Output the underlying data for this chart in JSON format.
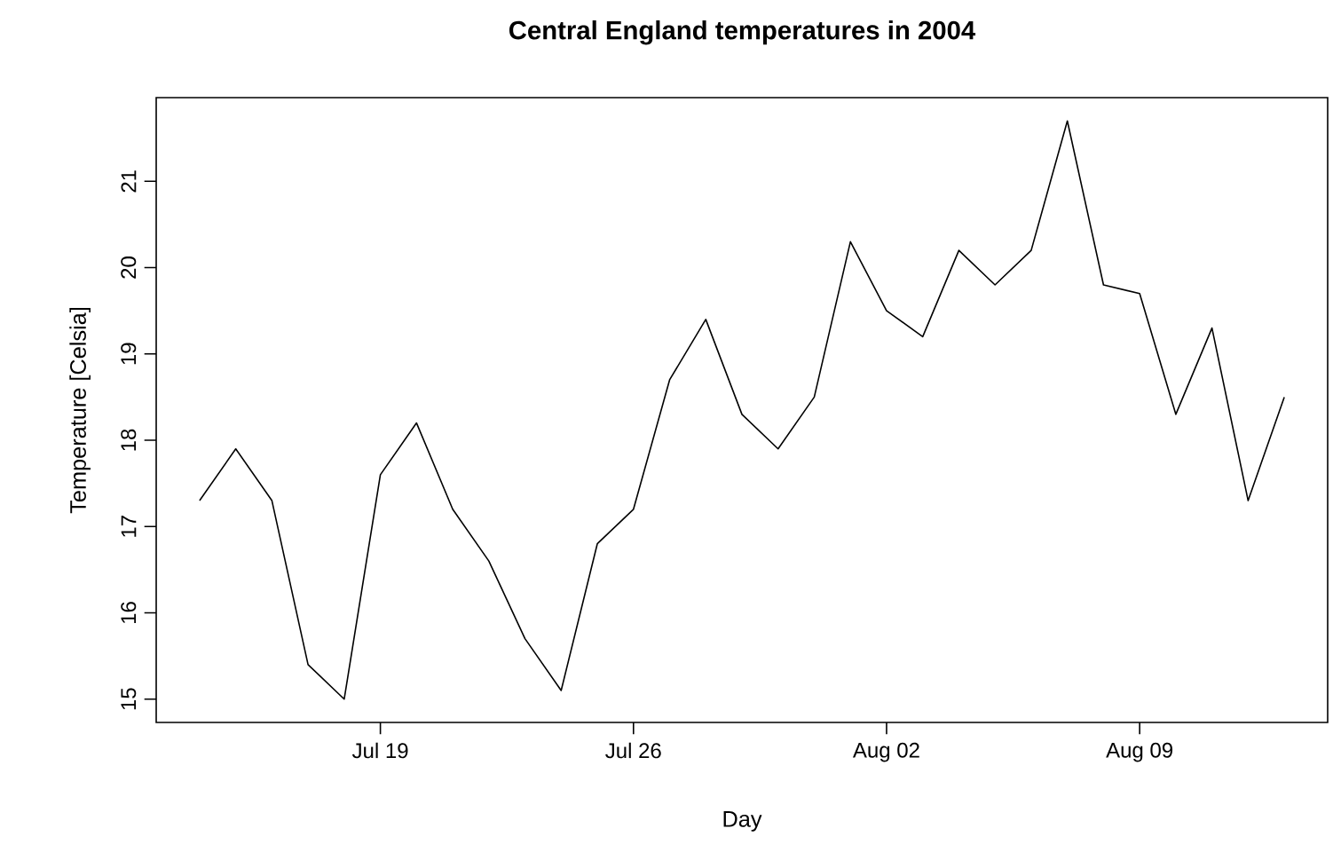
{
  "chart_data": {
    "type": "line",
    "title": "Central England temperatures in 2004",
    "xlabel": "Day",
    "ylabel": "Temperature [Celsia]",
    "x": [
      "2004-07-14",
      "2004-07-15",
      "2004-07-16",
      "2004-07-17",
      "2004-07-18",
      "2004-07-19",
      "2004-07-20",
      "2004-07-21",
      "2004-07-22",
      "2004-07-23",
      "2004-07-24",
      "2004-07-25",
      "2004-07-26",
      "2004-07-27",
      "2004-07-28",
      "2004-07-29",
      "2004-07-30",
      "2004-07-31",
      "2004-08-01",
      "2004-08-02",
      "2004-08-03",
      "2004-08-04",
      "2004-08-05",
      "2004-08-06",
      "2004-08-07",
      "2004-08-08",
      "2004-08-09",
      "2004-08-10",
      "2004-08-11",
      "2004-08-12",
      "2004-08-13"
    ],
    "series": [
      {
        "color": "#000000",
        "values": [
          17.3,
          17.9,
          17.3,
          15.4,
          15.0,
          17.6,
          18.2,
          17.2,
          16.6,
          15.7,
          15.1,
          16.8,
          17.2,
          18.7,
          19.4,
          18.3,
          17.9,
          18.5,
          20.3,
          19.5,
          19.2,
          20.2,
          19.8,
          20.2,
          21.7,
          19.8,
          19.7,
          18.3,
          19.3,
          17.3,
          18.5
        ]
      }
    ],
    "xlim": [
      "2004-07-12T19:12",
      "2004-08-14T04:48"
    ],
    "ylim": [
      14.73,
      21.97
    ],
    "xticks": [
      {
        "value": "2004-07-19",
        "label": "Jul 19"
      },
      {
        "value": "2004-07-26",
        "label": "Jul 26"
      },
      {
        "value": "2004-08-02",
        "label": "Aug 02"
      },
      {
        "value": "2004-08-09",
        "label": "Aug 09"
      }
    ],
    "yticks": [
      15,
      16,
      17,
      18,
      19,
      20,
      21
    ],
    "grid": false
  }
}
